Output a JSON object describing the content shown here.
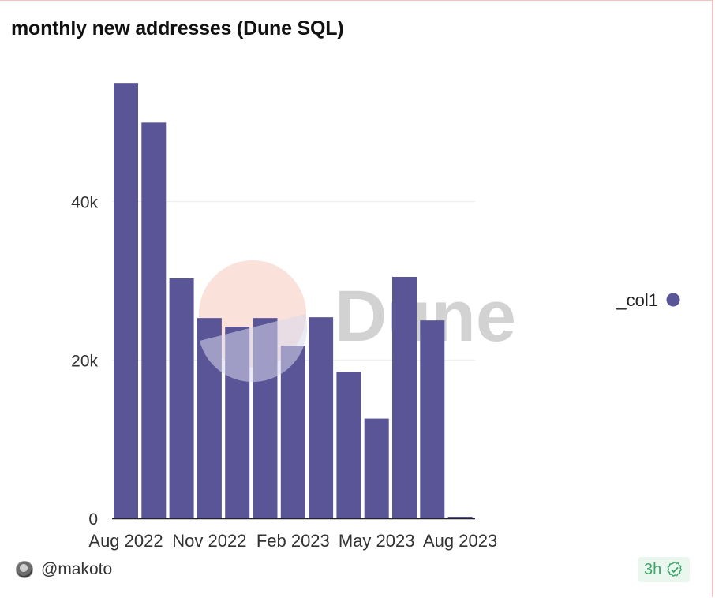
{
  "header": {
    "title": "monthly new addresses (Dune SQL)"
  },
  "watermark": {
    "text": "Dune"
  },
  "footer": {
    "username": "@makoto",
    "age": "3h",
    "avatar_icon": "user-avatar",
    "verified_icon": "verified-badge-icon"
  },
  "colors": {
    "bar": "#5a5597",
    "gridline": "#ececec",
    "axis": "#222222",
    "text": "#333333",
    "badge_bg": "#e9f7ee",
    "badge_fg": "#3fa66a"
  },
  "chart_data": {
    "type": "bar",
    "categories": [
      "Aug 2022",
      "Sep 2022",
      "Oct 2022",
      "Nov 2022",
      "Dec 2022",
      "Jan 2023",
      "Feb 2023",
      "Mar 2023",
      "Apr 2023",
      "May 2023",
      "Jun 2023",
      "Jul 2023",
      "Aug 2023"
    ],
    "series": [
      {
        "name": "_col1",
        "values": [
          55000,
          50000,
          30300,
          25300,
          24200,
          25300,
          21800,
          25400,
          18500,
          12600,
          30500,
          25000,
          200
        ]
      }
    ],
    "x_tick_labels": [
      "Aug 2022",
      "Nov 2022",
      "Feb 2023",
      "May 2023",
      "Aug 2023"
    ],
    "y_ticks": [
      0,
      20000,
      40000
    ],
    "y_tick_labels": [
      "0",
      "20k",
      "40k"
    ],
    "ylim": [
      0,
      60000
    ],
    "xlabel": "",
    "ylabel": "",
    "grid": true,
    "legend": {
      "placement": "right",
      "entries": [
        "_col1"
      ]
    }
  }
}
